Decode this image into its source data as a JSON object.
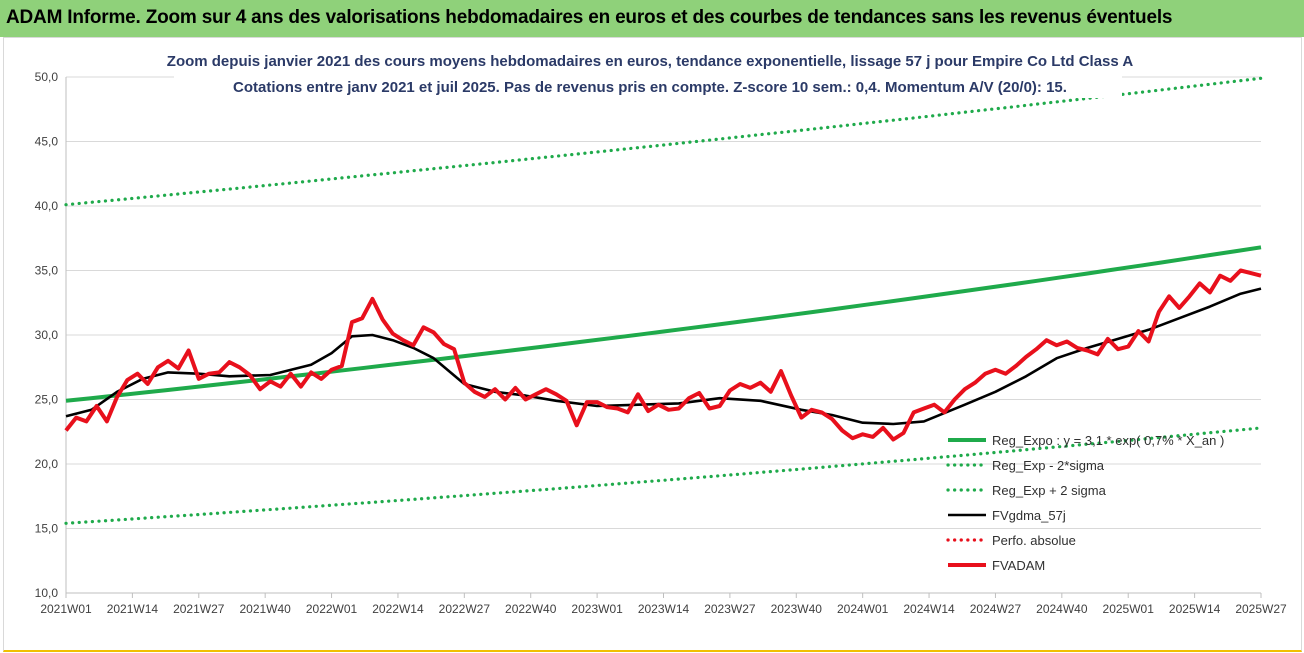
{
  "header": {
    "title": "ADAM Informe. Zoom sur 4 ans des valorisations hebdomadaires en euros et des courbes de tendances sans les revenus éventuels"
  },
  "colors": {
    "header_bg": "#8fd17a",
    "trend": "#1faa4b",
    "band": "#1faa4b",
    "moving_average": "#000000",
    "price": "#e8101c",
    "perfo": "#e8101c",
    "title_text": "#2b3a67"
  },
  "chart_data": {
    "type": "line",
    "title": "Zoom depuis janvier 2021 des cours moyens hebdomadaires en euros, tendance exponentielle, lissage 57 j pour Empire Co Ltd Class A",
    "subtitle": "Cotations entre janv 2021 et juil 2025. Pas de revenus pris en compte. Z-score 10 sem.: 0,4. Momentum A/V (20/0): 15.",
    "xlabel": "",
    "ylabel": "",
    "ylim": [
      10,
      50
    ],
    "y_ticks": [
      "10,0",
      "15,0",
      "20,0",
      "25,0",
      "30,0",
      "35,0",
      "40,0",
      "45,0",
      "50,0"
    ],
    "x_ticks": [
      "2021W01",
      "2021W14",
      "2021W27",
      "2021W40",
      "2022W01",
      "2022W14",
      "2022W27",
      "2022W40",
      "2023W01",
      "2023W14",
      "2023W27",
      "2023W40",
      "2024W01",
      "2024W14",
      "2024W27",
      "2024W40",
      "2025W01",
      "2025W14",
      "2025W27"
    ],
    "grid": "horizontal",
    "legend_position": "bottom-right",
    "series": [
      {
        "name": "Reg_Expo : y = 3,1 * exp( 0,7% * X_an )",
        "style": "solid",
        "color": "#1faa4b",
        "x": [
          0,
          234
        ],
        "values": [
          24.9,
          36.8
        ]
      },
      {
        "name": "Reg_Exp - 2*sigma",
        "style": "dotted",
        "color": "#1faa4b",
        "x": [
          0,
          234
        ],
        "values": [
          15.4,
          22.8
        ]
      },
      {
        "name": "Reg_Exp + 2 sigma",
        "style": "dotted",
        "color": "#1faa4b",
        "x": [
          0,
          234
        ],
        "values": [
          40.1,
          49.9
        ]
      },
      {
        "name": "FVgdma_57j",
        "style": "solid",
        "color": "#000000",
        "x": [
          0,
          5,
          10,
          15,
          20,
          26,
          32,
          40,
          48,
          52,
          56,
          60,
          64,
          68,
          72,
          78,
          84,
          90,
          96,
          104,
          112,
          120,
          128,
          136,
          144,
          150,
          156,
          162,
          168,
          176,
          182,
          188,
          194,
          200,
          206,
          212,
          218,
          224,
          230,
          234
        ],
        "values": [
          23.7,
          24.2,
          25.6,
          26.6,
          27.1,
          27.0,
          26.8,
          26.9,
          27.7,
          28.6,
          29.9,
          30.0,
          29.6,
          29.0,
          28.2,
          26.2,
          25.6,
          25.3,
          24.9,
          24.5,
          24.6,
          24.7,
          25.1,
          24.9,
          24.2,
          23.8,
          23.2,
          23.1,
          23.3,
          24.6,
          25.6,
          26.8,
          28.2,
          29.0,
          29.7,
          30.4,
          31.3,
          32.2,
          33.2,
          33.6
        ]
      },
      {
        "name": "Perfo. absolue",
        "style": "dotted",
        "color": "#e8101c",
        "x": [],
        "values": []
      },
      {
        "name": "FVADAM",
        "style": "solid",
        "color": "#e8101c",
        "x": [
          0,
          2,
          4,
          6,
          8,
          10,
          12,
          14,
          16,
          18,
          20,
          22,
          24,
          26,
          28,
          30,
          32,
          34,
          36,
          38,
          40,
          42,
          44,
          46,
          48,
          50,
          52,
          54,
          56,
          58,
          60,
          62,
          64,
          66,
          68,
          70,
          72,
          74,
          76,
          78,
          80,
          82,
          84,
          86,
          88,
          90,
          92,
          94,
          96,
          98,
          100,
          102,
          104,
          106,
          108,
          110,
          112,
          114,
          116,
          118,
          120,
          122,
          124,
          126,
          128,
          130,
          132,
          134,
          136,
          138,
          140,
          142,
          144,
          146,
          148,
          150,
          152,
          154,
          156,
          158,
          160,
          162,
          164,
          166,
          168,
          170,
          172,
          174,
          176,
          178,
          180,
          182,
          184,
          186,
          188,
          190,
          192,
          194,
          196,
          198,
          200,
          202,
          204,
          206,
          208,
          210,
          212,
          214,
          216,
          218,
          220,
          222,
          224,
          226,
          228,
          230,
          232,
          234
        ],
        "values": [
          22.6,
          23.6,
          23.3,
          24.5,
          23.3,
          25.2,
          26.5,
          27.0,
          26.2,
          27.5,
          28.0,
          27.4,
          28.8,
          26.6,
          27.0,
          27.1,
          27.9,
          27.5,
          26.9,
          25.8,
          26.4,
          26.0,
          27.0,
          26.0,
          27.1,
          26.6,
          27.3,
          27.6,
          31.0,
          31.3,
          32.8,
          31.2,
          30.1,
          29.6,
          29.2,
          30.6,
          30.2,
          29.3,
          28.9,
          26.3,
          25.6,
          25.2,
          25.8,
          25.0,
          25.9,
          25.0,
          25.4,
          25.8,
          25.4,
          24.9,
          23.0,
          24.8,
          24.8,
          24.4,
          24.3,
          24.0,
          25.4,
          24.1,
          24.6,
          24.2,
          24.3,
          25.1,
          25.5,
          24.3,
          24.5,
          25.7,
          26.2,
          25.9,
          26.3,
          25.6,
          27.2,
          25.3,
          23.6,
          24.2,
          24.0,
          23.5,
          22.6,
          22.0,
          22.3,
          22.1,
          22.8,
          21.9,
          22.4,
          24.0,
          24.3,
          24.6,
          24.0,
          25.0,
          25.8,
          26.3,
          27.0,
          27.3,
          27.0,
          27.6,
          28.3,
          28.9,
          29.6,
          29.2,
          29.5,
          29.0,
          28.8,
          28.5,
          29.7,
          28.9,
          29.1,
          30.3,
          29.5,
          31.8,
          33.0,
          32.1,
          33.0,
          34.0,
          33.3,
          34.6,
          34.2,
          35.0,
          34.8,
          34.6
        ]
      }
    ]
  },
  "legend": [
    {
      "label": "Reg_Expo : y = 3,1 * exp( 0,7% * X_an )",
      "style": "solid",
      "color": "#1faa4b"
    },
    {
      "label": "Reg_Exp - 2*sigma",
      "style": "dotted",
      "color": "#1faa4b"
    },
    {
      "label": "Reg_Exp + 2 sigma",
      "style": "dotted",
      "color": "#1faa4b"
    },
    {
      "label": "FVgdma_57j",
      "style": "solid",
      "color": "#000000"
    },
    {
      "label": "Perfo. absolue",
      "style": "dotted",
      "color": "#e8101c"
    },
    {
      "label": "FVADAM",
      "style": "solid",
      "color": "#e8101c"
    }
  ]
}
